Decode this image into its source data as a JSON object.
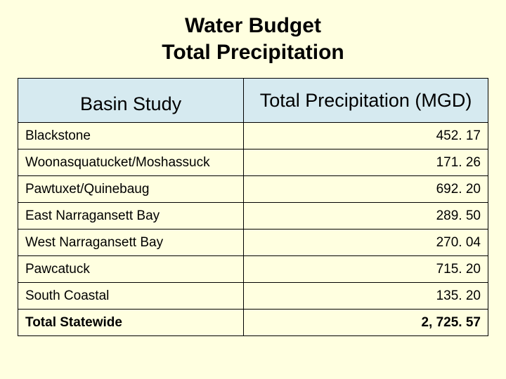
{
  "title": {
    "line1": "Water Budget",
    "line2": "Total Precipitation"
  },
  "table": {
    "type": "table",
    "background_color": "#ffffe0",
    "header_bg_color": "#d6eaf0",
    "border_color": "#000000",
    "text_color": "#000000",
    "title_fontsize": 30,
    "header_fontsize": 27,
    "row_fontsize": 19,
    "columns": [
      {
        "label": "Basin Study",
        "align": "left",
        "width_pct": 48
      },
      {
        "label": "Total Precipitation (MGD)",
        "align": "right",
        "width_pct": 52
      }
    ],
    "rows": [
      {
        "label": "Blackstone",
        "value": "452. 17"
      },
      {
        "label": "Woonasquatucket/Moshassuck",
        "value": "171. 26"
      },
      {
        "label": "Pawtuxet/Quinebaug",
        "value": "692. 20"
      },
      {
        "label": "East Narragansett Bay",
        "value": "289. 50"
      },
      {
        "label": "West Narragansett Bay",
        "value": "270. 04"
      },
      {
        "label": "Pawcatuck",
        "value": "715. 20"
      },
      {
        "label": "South Coastal",
        "value": "135. 20"
      }
    ],
    "total_row": {
      "label": "Total Statewide",
      "value": "2, 725. 57"
    }
  }
}
